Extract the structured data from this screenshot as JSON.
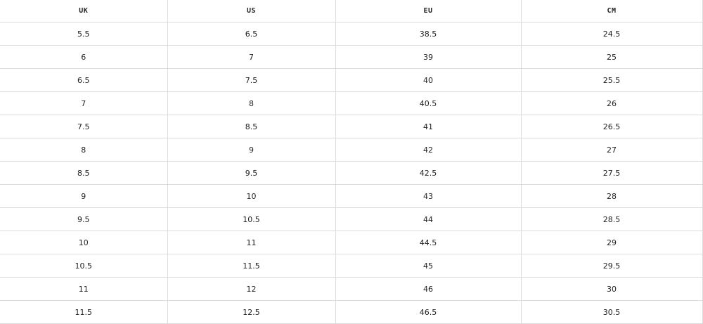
{
  "table": {
    "headers": [
      "UK",
      "US",
      "EU",
      "CM"
    ],
    "rows": [
      [
        "5.5",
        "6.5",
        "38.5",
        "24.5"
      ],
      [
        "6",
        "7",
        "39",
        "25"
      ],
      [
        "6.5",
        "7.5",
        "40",
        "25.5"
      ],
      [
        "7",
        "8",
        "40.5",
        "26"
      ],
      [
        "7.5",
        "8.5",
        "41",
        "26.5"
      ],
      [
        "8",
        "9",
        "42",
        "27"
      ],
      [
        "8.5",
        "9.5",
        "42.5",
        "27.5"
      ],
      [
        "9",
        "10",
        "43",
        "28"
      ],
      [
        "9.5",
        "10.5",
        "44",
        "28.5"
      ],
      [
        "10",
        "11",
        "44.5",
        "29"
      ],
      [
        "10.5",
        "11.5",
        "45",
        "29.5"
      ],
      [
        "11",
        "12",
        "46",
        "30"
      ],
      [
        "11.5",
        "12.5",
        "46.5",
        "30.5"
      ]
    ]
  }
}
